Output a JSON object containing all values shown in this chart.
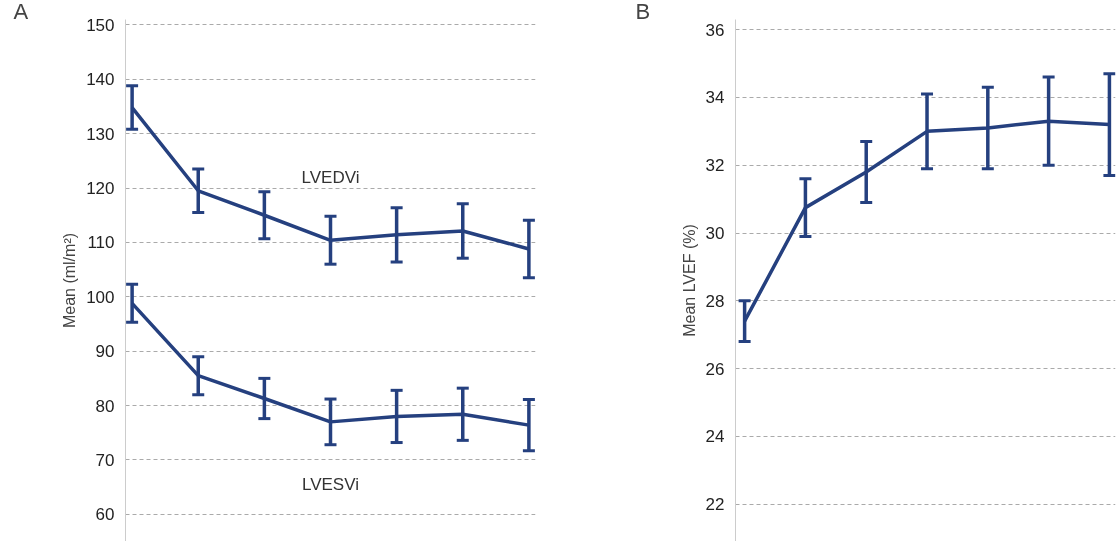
{
  "chart_data": [
    {
      "type": "line",
      "title": "A",
      "ylabel": "Mean (ml/m²)",
      "categories": [
        null,
        null,
        null,
        null,
        null,
        null,
        null
      ],
      "ylim": [
        55,
        151
      ],
      "yticks": [
        60,
        70,
        80,
        90,
        100,
        110,
        120,
        130,
        140,
        150
      ],
      "grid": "y",
      "tick_labels": "y",
      "series": [
        {
          "color": "#25407f",
          "values": [
            134.8,
            119.5,
            115,
            110.4,
            111.4,
            112.1,
            108.8
          ],
          "errors": [
            4,
            4,
            4.3,
            4.4,
            5,
            5,
            5.3
          ]
        },
        {
          "color": "#25407f",
          "values": [
            98.8,
            85.5,
            81.3,
            77,
            78,
            78.4,
            76.4
          ],
          "errors": [
            3.5,
            3.5,
            3.7,
            4.2,
            4.8,
            4.8,
            4.7
          ]
        }
      ],
      "annotations": [
        "LVEDVi",
        "LVESVi"
      ]
    },
    {
      "type": "line",
      "title": "B",
      "ylabel": "Mean LVEF (%)",
      "categories": [
        null,
        null,
        null,
        null,
        null,
        null,
        null
      ],
      "ylim": [
        20.9,
        36.3
      ],
      "yticks": [
        22,
        24,
        26,
        28,
        30,
        32,
        34,
        36
      ],
      "grid": "y",
      "tick_labels": "y",
      "series": [
        {
          "color": "#25407f",
          "values": [
            27.4,
            30.75,
            31.8,
            33.0,
            33.1,
            33.3,
            33.2
          ],
          "errors": [
            0.6,
            0.85,
            0.9,
            1.1,
            1.2,
            1.3,
            1.5
          ]
        }
      ]
    }
  ]
}
